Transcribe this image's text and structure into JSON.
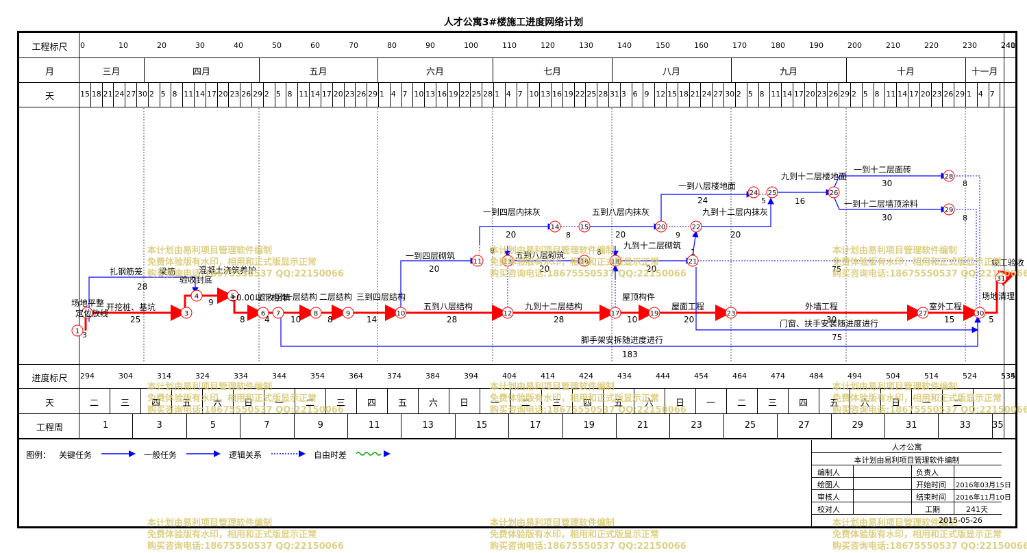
{
  "title": "人才公寓3#楼施工进度网络计划",
  "rows": {
    "scale_label": "工程标尺",
    "month_label": "月",
    "day_label": "天",
    "progress_label": "进度标尺",
    "weekday_label": "天",
    "week_label": "工程周"
  },
  "scale_ticks": [
    "0",
    "10",
    "20",
    "30",
    "40",
    "50",
    "60",
    "70",
    "80",
    "90",
    "100",
    "110",
    "120",
    "130",
    "140",
    "150",
    "160",
    "170",
    "180",
    "190",
    "200",
    "210",
    "220",
    "230",
    "240",
    "241"
  ],
  "months": [
    "三月",
    "四月",
    "五月",
    "六月",
    "七月",
    "八月",
    "九月",
    "十月",
    "十一月"
  ],
  "days": [
    "15",
    "18",
    "21",
    "24",
    "27",
    "30",
    "2",
    "5",
    "8",
    "11",
    "14",
    "17",
    "20",
    "23",
    "26",
    "29",
    "2",
    "5",
    "8",
    "11",
    "14",
    "17",
    "20",
    "23",
    "26",
    "29",
    "1",
    "4",
    "7",
    "10",
    "13",
    "16",
    "19",
    "22",
    "25",
    "28",
    "1",
    "4",
    "7",
    "10",
    "13",
    "16",
    "19",
    "22",
    "25",
    "28",
    "31",
    "3",
    "6",
    "9",
    "12",
    "15",
    "18",
    "21",
    "24",
    "27",
    "30",
    "2",
    "5",
    "8",
    "11",
    "14",
    "17",
    "20",
    "23",
    "26",
    "29",
    "2",
    "5",
    "8",
    "11",
    "14",
    "17",
    "20",
    "23",
    "26",
    "29",
    "1",
    "4",
    "7"
  ],
  "progress_ticks": [
    "294",
    "304",
    "314",
    "324",
    "334",
    "344",
    "354",
    "364",
    "374",
    "384",
    "394",
    "404",
    "414",
    "424",
    "434",
    "444",
    "454",
    "464",
    "474",
    "484",
    "494",
    "504",
    "514",
    "524",
    "534",
    "535"
  ],
  "weekdays": [
    "二",
    "三",
    "四",
    "五",
    "六",
    "日",
    "一",
    "二",
    "三",
    "四",
    "五",
    "六",
    "日",
    "一",
    "二",
    "三",
    "四",
    "五",
    "六",
    "日",
    "一",
    "二",
    "三",
    "四",
    "五",
    "六",
    "日",
    "一",
    "二"
  ],
  "weeks": [
    "1",
    "3",
    "5",
    "7",
    "9",
    "11",
    "13",
    "15",
    "17",
    "19",
    "21",
    "23",
    "25",
    "27",
    "29",
    "31",
    "33",
    "35"
  ],
  "tasks": {
    "t1": "场地平整",
    "t1b": "3",
    "t2": "定位放线",
    "t3": "开挖桩、基坑",
    "t3d": "25",
    "t4": "扎钢筋笼",
    "t4d": "28",
    "t5": "梁筋",
    "t6": "验收封底",
    "t7": "混凝土浇筑养护",
    "t7d": "9",
    "t8": "±0.00以下构件",
    "t8d": "8",
    "t9": "验收回填",
    "t9d": "4",
    "t10": "一层结构",
    "t10d": "10",
    "t11": "二层结构",
    "t11d": "8",
    "t12": "三到四层结构",
    "t12d": "14",
    "t13": "一到四层砌筑",
    "t13d": "20",
    "t14": "五到八层结构",
    "t14d": "28",
    "t15": "一到四层内抹灰",
    "t15d": "20",
    "t16": "五到八层砌筑",
    "t16d": "20",
    "t17": "九到十二层结构",
    "t17d": "28",
    "t18": "五到八层内抹灰",
    "t18d": "20",
    "t19": "九到十二层砌筑",
    "t19d": "20",
    "t20": "屋顶构件",
    "t20d": "10",
    "t21": "屋面工程",
    "t21d": "20",
    "t22": "一到八层楼地面",
    "t22d": "24",
    "t23": "九到十二层内抹灰",
    "t23d": "20",
    "t24": "九到十二层楼地面",
    "t24d": "16",
    "t25": "一到十二层面砖",
    "t25d": "30",
    "t26": "一到十二层墙顶涂料",
    "t26d": "30",
    "t27": "外墙工程",
    "t27d": "30",
    "t28": "室外工程",
    "t28d": "15",
    "t29": "门窗、扶手安装随进度进行",
    "t29d": "75",
    "t30": "脚手架安拆随进度进行",
    "t30d": "183",
    "t31": "场地清理",
    "t31d": "5",
    "t32": "竣工验收",
    "slack1": "8",
    "slack2": "8",
    "slack3": "8",
    "slack4": "9",
    "slack5": "1",
    "slack6": "75",
    "slack7": "8",
    "slack8": "8",
    "slack9": "5",
    "slack10": "5"
  },
  "legend": {
    "label": "图例：",
    "critical": "关键任务",
    "general": "一般任务",
    "logic": "逻辑关系",
    "free": "自由时差"
  },
  "info": {
    "project": "人才公寓",
    "note": "本计划由易利项目管理软件编制",
    "editor": "编制人",
    "owner": "负责人",
    "drawer": "绘图人",
    "start_label": "开始时间",
    "start": "2016年03月15日",
    "reviewer": "审核人",
    "end_label": "结束时间",
    "end": "2016年11月10日",
    "checker": "校对人",
    "duration_label": "工期",
    "duration": "241天",
    "date": "2015-05-26"
  },
  "watermark": {
    "l1": "本计划由易利项目管理软件编制",
    "l2": "免费体验版有水印，相用和正式版显示正常",
    "l3": "购买咨询电话:18675550537 QQ:22150066"
  },
  "colors": {
    "critical": "#ff0000",
    "general": "#0000ff",
    "free": "#00aa00"
  }
}
